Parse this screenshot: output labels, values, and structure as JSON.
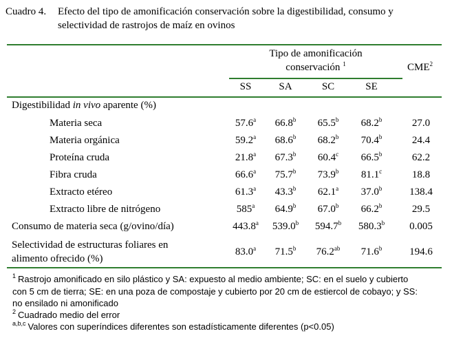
{
  "caption": {
    "label": "Cuadro 4.",
    "line1": "Efecto del tipo de amonificación conservación sobre la digestibilidad, consumo y",
    "line2": "selectividad de rastrojos de maíz en ovinos"
  },
  "header": {
    "group_line1": "Tipo de amonificación",
    "group_line2": "conservación",
    "group_sup": "1",
    "cme": "CME",
    "cme_sup": "2",
    "columns": [
      "SS",
      "SA",
      "SC",
      "SE"
    ]
  },
  "section1": {
    "pre": "Digestibilidad ",
    "italic": "in vivo",
    "post": " aparente (%)"
  },
  "rows": [
    {
      "label": "Materia seca",
      "values": [
        [
          "57.6",
          "a"
        ],
        [
          "66.8",
          "b"
        ],
        [
          "65.5",
          "b"
        ],
        [
          "68.2",
          "b"
        ]
      ],
      "cme": "27.0"
    },
    {
      "label": "Materia orgánica",
      "values": [
        [
          "59.2",
          "a"
        ],
        [
          "68.6",
          "b"
        ],
        [
          "68.2",
          "b"
        ],
        [
          "70.4",
          "b"
        ]
      ],
      "cme": "24.4"
    },
    {
      "label": "Proteína cruda",
      "values": [
        [
          "21.8",
          "a"
        ],
        [
          "67.3",
          "b"
        ],
        [
          "60.4",
          "c"
        ],
        [
          "66.5",
          "b"
        ]
      ],
      "cme": "62.2"
    },
    {
      "label": "Fibra cruda",
      "values": [
        [
          "66.6",
          "a"
        ],
        [
          "75.7",
          "b"
        ],
        [
          "73.9",
          "b"
        ],
        [
          "81.1",
          "c"
        ]
      ],
      "cme": "18.8"
    },
    {
      "label": "Extracto etéreo",
      "values": [
        [
          "61.3",
          "a"
        ],
        [
          "43.3",
          "b"
        ],
        [
          "62.1",
          "a"
        ],
        [
          "37.0",
          "b"
        ]
      ],
      "cme": "138.4"
    },
    {
      "label": "Extracto libre de nitrógeno",
      "values": [
        [
          "585",
          "a"
        ],
        [
          "64.9",
          "b"
        ],
        [
          "67.0",
          "b"
        ],
        [
          "66.2",
          "b"
        ]
      ],
      "cme": "29.5"
    },
    {
      "label": "Consumo de materia seca (g/ovino/día)",
      "values": [
        [
          "443.8",
          "a"
        ],
        [
          "539.0",
          "b"
        ],
        [
          "594.7",
          "b"
        ],
        [
          "580.3",
          "b"
        ]
      ],
      "cme": "0.005"
    },
    {
      "label": "Selectividad de estructuras foliares en",
      "label2": "alimento ofrecido (%)",
      "values": [
        [
          "83.0",
          "a"
        ],
        [
          "71.5",
          "b"
        ],
        [
          "76.2",
          "ab"
        ],
        [
          "71.6",
          "b"
        ]
      ],
      "cme": "194.6"
    }
  ],
  "footnotes": [
    {
      "mark": "1",
      "text": "Rastrojo amonificado en silo plástico y SA: expuesto al medio ambiente; SC: en el suelo y cubierto"
    },
    {
      "mark": "",
      "text": "con 5 cm de tierra; SE: en una poza de compostaje y cubierto por 20 cm de estiercol de cobayo; y SS:"
    },
    {
      "mark": "",
      "text": "no ensilado ni amonificado"
    },
    {
      "mark": "2",
      "text": "Cuadrado medio del error"
    },
    {
      "mark": "a,b,c",
      "text": "Valores con superíndices diferentes son estadísticamente diferentes (p<0.05)"
    }
  ]
}
